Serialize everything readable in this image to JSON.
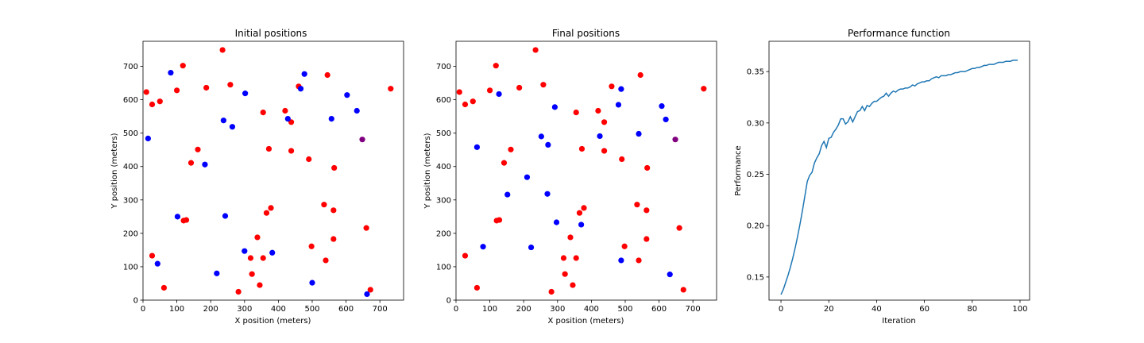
{
  "chart_data": [
    {
      "type": "scatter",
      "title": "Initial positions",
      "xlabel": "X position (meters)",
      "ylabel": "Y position (meters)",
      "xlim": [
        0,
        770
      ],
      "ylim": [
        0,
        775
      ],
      "xticks": [
        0,
        100,
        200,
        300,
        400,
        500,
        600,
        700
      ],
      "yticks": [
        0,
        100,
        200,
        300,
        400,
        500,
        600,
        700
      ],
      "grid": false,
      "colors": {
        "red": "#ff0000",
        "blue": "#0000ff",
        "purple": "#800080"
      },
      "series": [
        {
          "color": "red",
          "points": [
            [
              10,
              623
            ],
            [
              27,
              586
            ],
            [
              50,
              595
            ],
            [
              100,
              628
            ],
            [
              118,
              702
            ],
            [
              187,
              636
            ],
            [
              235,
              749
            ],
            [
              258,
              645
            ],
            [
              162,
              451
            ],
            [
              142,
              411
            ],
            [
              355,
              562
            ],
            [
              372,
              453
            ],
            [
              420,
              567
            ],
            [
              438,
              533
            ],
            [
              438,
              447
            ],
            [
              460,
              640
            ],
            [
              490,
              422
            ],
            [
              545,
              674
            ],
            [
              565,
              396
            ],
            [
              732,
              633
            ],
            [
              27,
              133
            ],
            [
              62,
              37
            ],
            [
              120,
              238
            ],
            [
              128,
              240
            ],
            [
              282,
              25
            ],
            [
              318,
              126
            ],
            [
              322,
              78
            ],
            [
              338,
              188
            ],
            [
              345,
              45
            ],
            [
              355,
              126
            ],
            [
              365,
              261
            ],
            [
              378,
              276
            ],
            [
              498,
              161
            ],
            [
              535,
              286
            ],
            [
              540,
              119
            ],
            [
              563,
              269
            ],
            [
              563,
              183
            ],
            [
              660,
              216
            ],
            [
              672,
              31
            ]
          ]
        },
        {
          "color": "blue",
          "points": [
            [
              15,
              484
            ],
            [
              82,
              681
            ],
            [
              302,
              619
            ],
            [
              238,
              538
            ],
            [
              264,
              519
            ],
            [
              183,
              406
            ],
            [
              428,
              543
            ],
            [
              466,
              633
            ],
            [
              477,
              677
            ],
            [
              557,
              543
            ],
            [
              603,
              614
            ],
            [
              632,
              567
            ],
            [
              102,
              250
            ],
            [
              243,
              252
            ],
            [
              43,
              109
            ],
            [
              218,
              80
            ],
            [
              300,
              147
            ],
            [
              382,
              142
            ],
            [
              500,
              52
            ],
            [
              662,
              18
            ]
          ]
        },
        {
          "color": "purple",
          "points": [
            [
              648,
              481
            ]
          ]
        }
      ]
    },
    {
      "type": "scatter",
      "title": "Final positions",
      "xlabel": "X position (meters)",
      "ylabel": "Y position (meters)",
      "xlim": [
        0,
        770
      ],
      "ylim": [
        0,
        775
      ],
      "xticks": [
        0,
        100,
        200,
        300,
        400,
        500,
        600,
        700
      ],
      "yticks": [
        0,
        100,
        200,
        300,
        400,
        500,
        600,
        700
      ],
      "grid": false,
      "colors": {
        "red": "#ff0000",
        "blue": "#0000ff",
        "purple": "#800080"
      },
      "series": [
        {
          "color": "red",
          "points": [
            [
              10,
              623
            ],
            [
              27,
              586
            ],
            [
              50,
              595
            ],
            [
              100,
              628
            ],
            [
              118,
              702
            ],
            [
              187,
              636
            ],
            [
              235,
              749
            ],
            [
              258,
              645
            ],
            [
              162,
              451
            ],
            [
              142,
              411
            ],
            [
              355,
              562
            ],
            [
              372,
              453
            ],
            [
              420,
              567
            ],
            [
              438,
              533
            ],
            [
              438,
              447
            ],
            [
              460,
              640
            ],
            [
              490,
              422
            ],
            [
              545,
              674
            ],
            [
              565,
              396
            ],
            [
              732,
              633
            ],
            [
              27,
              133
            ],
            [
              62,
              37
            ],
            [
              120,
              238
            ],
            [
              128,
              240
            ],
            [
              282,
              25
            ],
            [
              318,
              126
            ],
            [
              322,
              78
            ],
            [
              338,
              188
            ],
            [
              345,
              45
            ],
            [
              355,
              126
            ],
            [
              365,
              261
            ],
            [
              378,
              276
            ],
            [
              498,
              161
            ],
            [
              535,
              286
            ],
            [
              540,
              119
            ],
            [
              563,
              269
            ],
            [
              563,
              183
            ],
            [
              660,
              216
            ],
            [
              672,
              31
            ]
          ]
        },
        {
          "color": "blue",
          "points": [
            [
              127,
              617
            ],
            [
              292,
              578
            ],
            [
              62,
              458
            ],
            [
              252,
              490
            ],
            [
              272,
              465
            ],
            [
              210,
              368
            ],
            [
              152,
              316
            ],
            [
              270,
              318
            ],
            [
              297,
              233
            ],
            [
              370,
              226
            ],
            [
              80,
              160
            ],
            [
              222,
              158
            ],
            [
              480,
              585
            ],
            [
              488,
              632
            ],
            [
              425,
              491
            ],
            [
              540,
              498
            ],
            [
              608,
              581
            ],
            [
              620,
              541
            ],
            [
              488,
              119
            ],
            [
              632,
              77
            ]
          ]
        },
        {
          "color": "purple",
          "points": [
            [
              648,
              481
            ]
          ]
        }
      ]
    },
    {
      "type": "line",
      "title": "Performance function",
      "xlabel": "Iteration",
      "ylabel": "Performance",
      "xlim": [
        -5,
        104
      ],
      "ylim": [
        0.1275,
        0.3795
      ],
      "xticks": [
        0,
        20,
        40,
        60,
        80,
        100
      ],
      "yticks": [
        0.15,
        0.2,
        0.25,
        0.3,
        0.35
      ],
      "ytick_labels": [
        "0.15",
        "0.20",
        "0.25",
        "0.30",
        "0.35"
      ],
      "grid": false,
      "line_color": "#1f77b4",
      "series": [
        {
          "x": [
            0,
            1,
            2,
            3,
            4,
            5,
            6,
            7,
            8,
            9,
            10,
            11,
            12,
            13,
            14,
            15,
            16,
            17,
            18,
            19,
            20,
            21,
            22,
            23,
            24,
            25,
            26,
            27,
            28,
            29,
            30,
            31,
            32,
            33,
            34,
            35,
            36,
            37,
            38,
            39,
            40,
            41,
            42,
            43,
            44,
            45,
            46,
            47,
            48,
            49,
            50,
            51,
            52,
            53,
            54,
            55,
            56,
            57,
            58,
            59,
            60,
            61,
            62,
            63,
            64,
            65,
            66,
            67,
            68,
            69,
            70,
            71,
            72,
            73,
            74,
            75,
            76,
            77,
            78,
            79,
            80,
            81,
            82,
            83,
            84,
            85,
            86,
            87,
            88,
            89,
            90,
            91,
            92,
            93,
            94,
            95,
            96,
            97,
            98,
            99
          ],
          "y": [
            0.133,
            0.138,
            0.145,
            0.152,
            0.16,
            0.169,
            0.179,
            0.19,
            0.202,
            0.215,
            0.229,
            0.243,
            0.249,
            0.252,
            0.261,
            0.266,
            0.27,
            0.278,
            0.282,
            0.276,
            0.285,
            0.286,
            0.291,
            0.294,
            0.298,
            0.304,
            0.304,
            0.299,
            0.301,
            0.306,
            0.301,
            0.306,
            0.311,
            0.312,
            0.316,
            0.312,
            0.317,
            0.316,
            0.319,
            0.321,
            0.321,
            0.323,
            0.325,
            0.326,
            0.329,
            0.326,
            0.329,
            0.331,
            0.33,
            0.332,
            0.333,
            0.333,
            0.334,
            0.334,
            0.335,
            0.337,
            0.336,
            0.338,
            0.339,
            0.34,
            0.34,
            0.341,
            0.341,
            0.343,
            0.344,
            0.345,
            0.344,
            0.346,
            0.346,
            0.346,
            0.347,
            0.347,
            0.348,
            0.349,
            0.349,
            0.35,
            0.35,
            0.35,
            0.351,
            0.352,
            0.353,
            0.353,
            0.354,
            0.354,
            0.355,
            0.356,
            0.356,
            0.357,
            0.357,
            0.357,
            0.358,
            0.359,
            0.359,
            0.359,
            0.36,
            0.36,
            0.36,
            0.361,
            0.361,
            0.361
          ]
        }
      ]
    }
  ]
}
